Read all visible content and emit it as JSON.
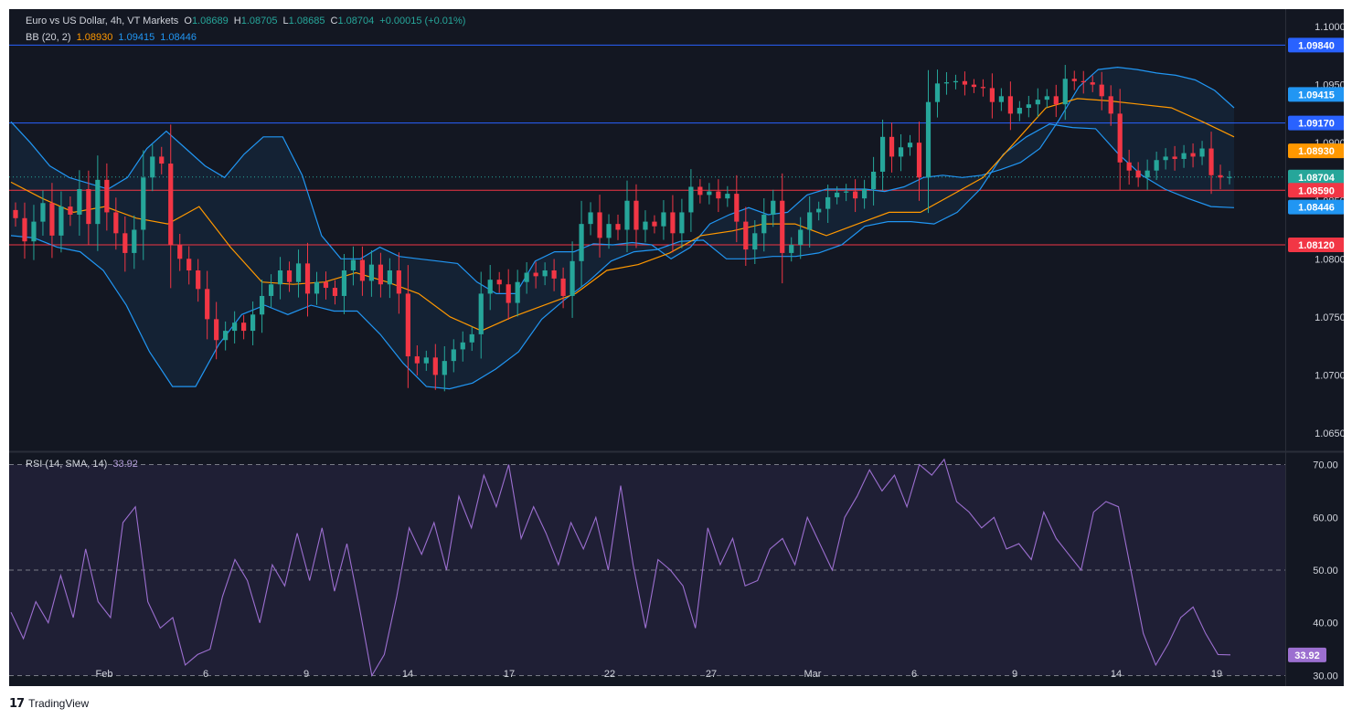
{
  "legend": {
    "symbol": "Euro vs US Dollar, 4h, VT Markets",
    "o_label": "O",
    "o": "1.08689",
    "h_label": "H",
    "h": "1.08705",
    "l_label": "L",
    "l": "1.08685",
    "c_label": "C",
    "c": "1.08704",
    "change": "+0.00015 (+0.01%)",
    "bb_label": "BB (20, 2)",
    "bb_basis": "1.08930",
    "bb_upper": "1.09415",
    "bb_lower": "1.08446",
    "rsi_label": "RSI (14, SMA, 14)",
    "rsi_value": "33.92"
  },
  "branding": {
    "logo": "17",
    "name": "TradingView"
  },
  "colors": {
    "background": "#131722",
    "up": "#26a69a",
    "down": "#f23645",
    "bb_basis": "#ff9800",
    "bb_band": "#2196f3",
    "rsi": "#9c6fd0",
    "level_blue": "#2962ff",
    "level_red": "#f23645"
  },
  "chart_data": [
    {
      "type": "candlestick",
      "title": "Euro vs US Dollar, 4h, VT Markets",
      "ylim": [
        1.0635,
        1.1015
      ],
      "y_ticks": [
        "1.10000",
        "1.09500",
        "1.09000",
        "1.08500",
        "1.08000",
        "1.07500",
        "1.07000",
        "1.06500"
      ],
      "x_ticks": [
        "Feb",
        "6",
        "9",
        "14",
        "17",
        "22",
        "27",
        "Mar",
        "6",
        "9",
        "14",
        "19"
      ],
      "price_tags": [
        {
          "label": "1.09840",
          "value": 1.0984,
          "kind": "level-blue"
        },
        {
          "label": "1.09415",
          "value": 1.09415,
          "kind": "bb-upper"
        },
        {
          "label": "1.09170",
          "value": 1.0917,
          "kind": "level-blue"
        },
        {
          "label": "1.08930",
          "value": 1.0893,
          "kind": "bb-basis"
        },
        {
          "label": "1.08704",
          "value": 1.08704,
          "kind": "last-price"
        },
        {
          "label": "1.08590",
          "value": 1.0859,
          "kind": "level-red"
        },
        {
          "label": "1.08446",
          "value": 1.08446,
          "kind": "bb-lower"
        },
        {
          "label": "1.08120",
          "value": 1.0812,
          "kind": "level-red"
        }
      ],
      "horizontal_levels": [
        1.0984,
        1.0917,
        1.0859,
        1.0812
      ],
      "last_price": 1.08704,
      "price_path": [
        1.0842,
        1.0835,
        1.0815,
        1.0832,
        1.0848,
        1.082,
        1.0845,
        1.0838,
        1.086,
        1.083,
        1.0868,
        1.084,
        1.0822,
        1.0805,
        1.0825,
        1.087,
        1.0888,
        1.0882,
        1.0812,
        1.08,
        1.079,
        1.0774,
        1.0748,
        1.073,
        1.0738,
        1.0745,
        1.0738,
        1.0752,
        1.0768,
        1.0778,
        1.079,
        1.078,
        1.0796,
        1.077,
        1.078,
        1.0775,
        1.0768,
        1.079,
        1.0799,
        1.0781,
        1.0795,
        1.0778,
        1.079,
        1.077,
        1.0716,
        1.071,
        1.0715,
        1.07,
        1.0712,
        1.0722,
        1.0728,
        1.0735,
        1.077,
        1.0782,
        1.0778,
        1.0762,
        1.078,
        1.0788,
        1.0785,
        1.079,
        1.0783,
        1.0768,
        1.0798,
        1.083,
        1.084,
        1.0818,
        1.083,
        1.0825,
        1.085,
        1.0825,
        1.0832,
        1.0828,
        1.084,
        1.0822,
        1.084,
        1.0862,
        1.0855,
        1.0858,
        1.0852,
        1.0856,
        1.0832,
        1.0808,
        1.0822,
        1.0838,
        1.085,
        1.0805,
        1.0812,
        1.0825,
        1.084,
        1.0843,
        1.0853,
        1.0857,
        1.0858,
        1.0852,
        1.086,
        1.0875,
        1.0905,
        1.0888,
        1.0896,
        1.09,
        1.087,
        1.0935,
        1.0951,
        1.0952,
        1.0953,
        1.095,
        1.0948,
        1.0947,
        1.0935,
        1.094,
        1.0925,
        1.093,
        1.0933,
        1.0937,
        1.094,
        1.0933,
        1.0955,
        1.0953,
        1.0952,
        1.095,
        1.094,
        1.0925,
        1.0883,
        1.0876,
        1.087,
        1.0876,
        1.0885,
        1.0888,
        1.0886,
        1.0891,
        1.0888,
        1.0895,
        1.0872,
        1.087,
        1.08704
      ],
      "bb_upper_path": [
        1.0918,
        1.09,
        1.088,
        1.087,
        1.0865,
        1.086,
        1.087,
        1.0895,
        1.091,
        1.0895,
        1.088,
        1.087,
        1.089,
        1.0905,
        1.0905,
        1.0872,
        1.082,
        1.08,
        1.08,
        1.081,
        1.0802,
        1.08,
        1.0798,
        1.0796,
        1.078,
        1.077,
        1.077,
        1.0798,
        1.0806,
        1.0806,
        1.0813,
        1.0812,
        1.0814,
        1.0812,
        1.08,
        1.081,
        1.083,
        1.0838,
        1.0844,
        1.0838,
        1.084,
        1.0855,
        1.086,
        1.086,
        1.086,
        1.0858,
        1.0862,
        1.087,
        1.0872,
        1.087,
        1.0872,
        1.0877,
        1.0883,
        1.0895,
        1.092,
        1.0948,
        1.0963,
        1.0965,
        1.0963,
        1.096,
        1.0958,
        1.0954,
        1.0945,
        1.093
      ],
      "bb_basis_path": [
        1.0866,
        1.0852,
        1.084,
        1.0845,
        1.0835,
        1.083,
        1.0845,
        1.081,
        1.078,
        1.0778,
        1.078,
        1.0788,
        1.078,
        1.077,
        1.075,
        1.0738,
        1.075,
        1.076,
        1.077,
        1.079,
        1.0795,
        1.0805,
        1.082,
        1.0824,
        1.083,
        1.083,
        1.082,
        1.083,
        1.084,
        1.084,
        1.0855,
        1.087,
        1.09,
        1.093,
        1.0938,
        1.0936,
        1.0933,
        1.093,
        1.0918,
        1.0905
      ],
      "bb_lower_path": [
        1.082,
        1.0818,
        1.081,
        1.0806,
        1.079,
        1.076,
        1.072,
        1.069,
        1.069,
        1.0726,
        1.0752,
        1.076,
        1.0752,
        1.076,
        1.0755,
        1.0755,
        1.0735,
        1.071,
        1.069,
        1.0688,
        1.0693,
        1.0705,
        1.072,
        1.0748,
        1.0765,
        1.078,
        1.0798,
        1.0806,
        1.0808,
        1.0815,
        1.0816,
        1.08,
        1.08,
        1.0802,
        1.0802,
        1.0805,
        1.0812,
        1.0828,
        1.0832,
        1.0832,
        1.083,
        1.084,
        1.086,
        1.089,
        1.0905,
        1.0916,
        1.0913,
        1.0912,
        1.089,
        1.0872,
        1.086,
        1.0852,
        1.0845,
        1.0844
      ]
    },
    {
      "type": "line",
      "title": "RSI (14, SMA, 14)",
      "ylim": [
        28,
        72
      ],
      "y_ticks": [
        "70.00",
        "60.00",
        "50.00",
        "40.00",
        "30.00"
      ],
      "x_ticks": [
        "Feb",
        "6",
        "9",
        "14",
        "17",
        "22",
        "27",
        "Mar",
        "6",
        "9",
        "14",
        "19"
      ],
      "bands": [
        30,
        50,
        70
      ],
      "last_value": 33.92,
      "values": [
        42,
        37,
        44,
        40,
        49,
        41,
        54,
        44,
        41,
        59,
        62,
        44,
        39,
        41,
        32,
        34,
        35,
        45,
        52,
        48,
        40,
        51,
        47,
        57,
        48,
        58,
        46,
        55,
        43,
        30,
        34,
        45,
        58,
        53,
        59,
        50,
        64,
        58,
        68,
        62,
        70,
        56,
        62,
        57,
        51,
        59,
        54,
        60,
        50,
        66,
        51,
        39,
        52,
        50,
        47,
        39,
        58,
        51,
        56,
        47,
        48,
        54,
        56,
        51,
        60,
        55,
        50,
        60,
        64,
        69,
        65,
        68,
        62,
        70,
        68,
        71,
        63,
        61,
        58,
        60,
        54,
        55,
        52,
        61,
        56,
        53,
        50,
        61,
        63,
        62,
        50,
        38,
        32,
        36,
        41,
        43,
        38,
        34,
        33.92
      ]
    }
  ]
}
